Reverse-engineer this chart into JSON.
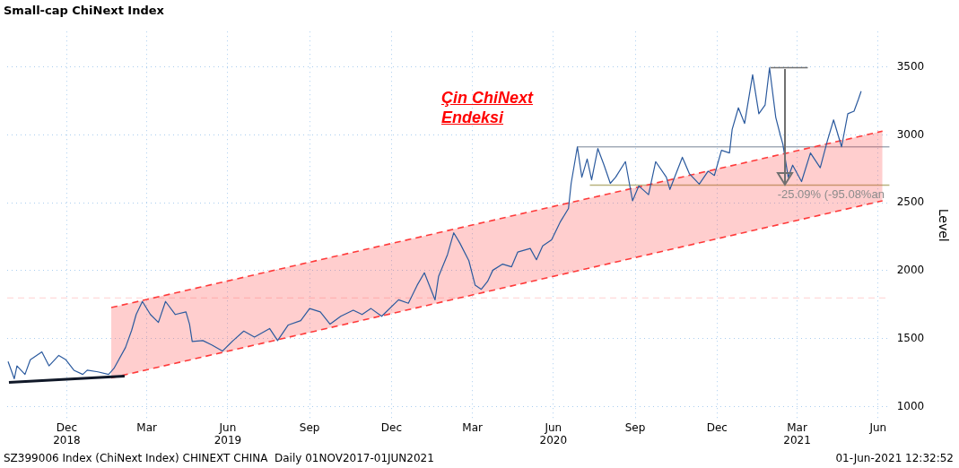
{
  "chart_data": {
    "type": "line",
    "title": "Small-cap ChiNext Index",
    "ylabel": "Level",
    "legend": false,
    "marker": "none",
    "grid": true,
    "xlim": [
      "2018-10-10",
      "2021-06-28"
    ],
    "ylim": [
      910,
      3760
    ],
    "yticks": [
      1000,
      1500,
      2000,
      2500,
      3000,
      3500
    ],
    "xticks": [
      {
        "value": "2018-12-16",
        "label": "Dec\n2018"
      },
      {
        "value": "2019-03-16",
        "label": "Mar"
      },
      {
        "value": "2019-06-15",
        "label": "Jun\n2019"
      },
      {
        "value": "2019-09-15",
        "label": "Sep"
      },
      {
        "value": "2019-12-16",
        "label": "Dec"
      },
      {
        "value": "2020-03-16",
        "label": "Mar"
      },
      {
        "value": "2020-06-15",
        "label": "Jun\n2020"
      },
      {
        "value": "2020-09-15",
        "label": "Sep"
      },
      {
        "value": "2020-12-16",
        "label": "Dec"
      },
      {
        "value": "2021-03-16",
        "label": "Mar\n2021"
      },
      {
        "value": "2021-06-15",
        "label": "Jun"
      }
    ],
    "ref_lines": [
      {
        "axis": "y",
        "value": 1800,
        "color": "#ffd0d0",
        "line_style": "dashed"
      }
    ],
    "annotations": [
      "Çin ChiNext\nEndeksi",
      {
        "text": "-25.09% (-95.08%an",
        "x": "2021-03-02",
        "y": 2630
      },
      "SZ399006 Index (ChiNext Index) CHINEXT CHINA  Daily 01NOV2017-01JUN2021",
      "01-Jun-2021 12:32:52"
    ],
    "series": [
      {
        "color": "#2b5a9e",
        "line_style": "solid",
        "x": [
          "2018-10-11",
          "2018-10-18",
          "2018-10-21",
          "2018-10-30",
          "2018-11-05",
          "2018-11-18",
          "2018-11-26",
          "2018-12-07",
          "2018-12-15",
          "2018-12-24",
          "2019-01-03",
          "2019-01-08",
          "2019-01-20",
          "2019-02-01",
          "2019-02-07",
          "2019-02-20",
          "2019-02-27",
          "2019-03-04",
          "2019-03-11",
          "2019-03-20",
          "2019-03-29",
          "2019-04-06",
          "2019-04-17",
          "2019-04-29",
          "2019-05-03",
          "2019-05-06",
          "2019-05-18",
          "2019-05-28",
          "2019-06-09",
          "2019-06-21",
          "2019-07-03",
          "2019-07-15",
          "2019-08-01",
          "2019-08-10",
          "2019-08-22",
          "2019-09-05",
          "2019-09-15",
          "2019-09-27",
          "2019-10-08",
          "2019-10-20",
          "2019-11-03",
          "2019-11-13",
          "2019-11-23",
          "2019-12-05",
          "2019-12-24",
          "2020-01-04",
          "2020-01-14",
          "2020-01-22",
          "2020-02-03",
          "2020-02-07",
          "2020-02-17",
          "2020-02-24",
          "2020-03-02",
          "2020-03-12",
          "2020-03-19",
          "2020-03-26",
          "2020-04-02",
          "2020-04-08",
          "2020-04-19",
          "2020-04-29",
          "2020-05-06",
          "2020-05-20",
          "2020-05-27",
          "2020-06-03",
          "2020-06-13",
          "2020-06-23",
          "2020-07-02",
          "2020-07-05",
          "2020-07-12",
          "2020-07-17",
          "2020-07-23",
          "2020-07-28",
          "2020-08-04",
          "2020-08-11",
          "2020-08-18",
          "2020-08-24",
          "2020-09-04",
          "2020-09-12",
          "2020-09-19",
          "2020-09-30",
          "2020-10-08",
          "2020-10-20",
          "2020-10-24",
          "2020-11-07",
          "2020-11-15",
          "2020-11-26",
          "2020-12-06",
          "2020-12-13",
          "2020-12-21",
          "2020-12-30",
          "2021-01-02",
          "2021-01-09",
          "2021-01-16",
          "2021-01-25",
          "2021-02-01",
          "2021-02-08",
          "2021-02-13",
          "2021-02-20",
          "2021-02-25",
          "2021-02-28",
          "2021-03-06",
          "2021-03-11",
          "2021-03-21",
          "2021-03-31",
          "2021-04-11",
          "2021-04-19",
          "2021-04-26",
          "2021-05-05",
          "2021-05-12",
          "2021-05-19",
          "2021-05-24",
          "2021-05-27"
        ],
        "values": [
          1332,
          1205,
          1300,
          1237,
          1345,
          1403,
          1300,
          1377,
          1345,
          1268,
          1237,
          1268,
          1256,
          1237,
          1281,
          1435,
          1563,
          1678,
          1774,
          1678,
          1620,
          1774,
          1678,
          1697,
          1607,
          1480,
          1486,
          1454,
          1409,
          1486,
          1556,
          1512,
          1575,
          1486,
          1601,
          1633,
          1722,
          1697,
          1607,
          1665,
          1710,
          1678,
          1722,
          1665,
          1786,
          1761,
          1895,
          1985,
          1786,
          1959,
          2119,
          2279,
          2202,
          2074,
          1895,
          1863,
          1921,
          2004,
          2049,
          2029,
          2138,
          2164,
          2081,
          2183,
          2228,
          2362,
          2458,
          2643,
          2912,
          2688,
          2822,
          2669,
          2899,
          2777,
          2643,
          2688,
          2803,
          2515,
          2624,
          2560,
          2803,
          2688,
          2598,
          2835,
          2713,
          2637,
          2733,
          2701,
          2886,
          2867,
          3040,
          3199,
          3084,
          3442,
          3155,
          3219,
          3494,
          3129,
          3001,
          2931,
          2688,
          2777,
          2656,
          2867,
          2758,
          2956,
          3110,
          2912,
          3155,
          3174,
          3263,
          3321
        ]
      },
      {
        "color": "#101828",
        "line_style": "solid",
        "x": [
          "2018-10-12",
          "2019-02-19"
        ],
        "values": [
          1179,
          1224
        ]
      },
      {
        "color": "#ff3b3b",
        "line_style": "dashed",
        "x": [
          "2019-02-04",
          "2021-06-20"
        ],
        "values": [
          1729,
          3027
        ],
        "upper": [
          1729,
          3027
        ],
        "lower": [
          1211,
          2515
        ]
      },
      {
        "color": "#a3acb8",
        "line_style": "solid",
        "x": [
          "2020-07-12",
          "2021-06-28"
        ],
        "values": [
          2912,
          2912
        ]
      },
      {
        "color": "#b8b27e",
        "line_style": "solid",
        "x": [
          "2020-07-26",
          "2021-06-28"
        ],
        "values": [
          2630,
          2630
        ]
      },
      {
        "color": "#707070",
        "line_style": "solid",
        "x": [
          "2021-02-14",
          "2021-03-28"
        ],
        "values": [
          3494,
          3494
        ]
      }
    ]
  }
}
